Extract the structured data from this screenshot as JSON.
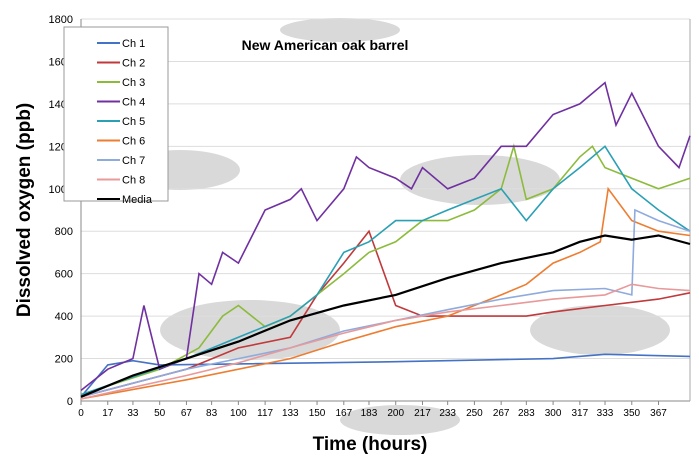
{
  "chart_data": {
    "type": "line",
    "title": "New American oak barrel",
    "xlabel": "Time (hours)",
    "ylabel": "Dissolved oxygen (ppb)",
    "xlim": [
      0,
      387
    ],
    "ylim": [
      0,
      1800
    ],
    "xticks": [
      0,
      17,
      33,
      50,
      67,
      83,
      100,
      117,
      133,
      150,
      167,
      183,
      200,
      217,
      233,
      250,
      267,
      283,
      300,
      317,
      333,
      350,
      367
    ],
    "yticks": [
      0,
      200,
      400,
      600,
      800,
      1000,
      1200,
      1400,
      1600,
      1800
    ],
    "grid": true,
    "legend": "top-left",
    "series": [
      {
        "name": "Ch 1",
        "color": "#4472c4",
        "points": [
          [
            0,
            20
          ],
          [
            17,
            170
          ],
          [
            33,
            190
          ],
          [
            50,
            170
          ],
          [
            100,
            175
          ],
          [
            200,
            185
          ],
          [
            300,
            200
          ],
          [
            333,
            220
          ],
          [
            387,
            210
          ]
        ]
      },
      {
        "name": "Ch 2",
        "color": "#c0393b",
        "points": [
          [
            0,
            20
          ],
          [
            67,
            150
          ],
          [
            100,
            250
          ],
          [
            133,
            300
          ],
          [
            150,
            500
          ],
          [
            167,
            650
          ],
          [
            183,
            800
          ],
          [
            200,
            450
          ],
          [
            217,
            400
          ],
          [
            250,
            400
          ],
          [
            283,
            400
          ],
          [
            300,
            420
          ],
          [
            333,
            450
          ],
          [
            367,
            480
          ],
          [
            387,
            510
          ]
        ]
      },
      {
        "name": "Ch 3",
        "color": "#8cbb3c",
        "points": [
          [
            0,
            30
          ],
          [
            50,
            150
          ],
          [
            75,
            250
          ],
          [
            90,
            400
          ],
          [
            100,
            450
          ],
          [
            117,
            350
          ],
          [
            133,
            400
          ],
          [
            150,
            500
          ],
          [
            167,
            600
          ],
          [
            183,
            700
          ],
          [
            200,
            750
          ],
          [
            217,
            850
          ],
          [
            233,
            850
          ],
          [
            250,
            900
          ],
          [
            267,
            1000
          ],
          [
            275,
            1200
          ],
          [
            283,
            950
          ],
          [
            300,
            1000
          ],
          [
            317,
            1150
          ],
          [
            325,
            1200
          ],
          [
            333,
            1100
          ],
          [
            350,
            1050
          ],
          [
            367,
            1000
          ],
          [
            387,
            1050
          ]
        ]
      },
      {
        "name": "Ch 4",
        "color": "#7030a0",
        "points": [
          [
            0,
            50
          ],
          [
            17,
            150
          ],
          [
            33,
            200
          ],
          [
            40,
            450
          ],
          [
            50,
            150
          ],
          [
            67,
            200
          ],
          [
            75,
            600
          ],
          [
            83,
            550
          ],
          [
            90,
            700
          ],
          [
            100,
            650
          ],
          [
            117,
            900
          ],
          [
            133,
            950
          ],
          [
            140,
            1000
          ],
          [
            150,
            850
          ],
          [
            167,
            1000
          ],
          [
            175,
            1150
          ],
          [
            183,
            1100
          ],
          [
            200,
            1050
          ],
          [
            210,
            1000
          ],
          [
            217,
            1100
          ],
          [
            233,
            1000
          ],
          [
            250,
            1050
          ],
          [
            267,
            1200
          ],
          [
            283,
            1200
          ],
          [
            300,
            1350
          ],
          [
            317,
            1400
          ],
          [
            333,
            1500
          ],
          [
            340,
            1300
          ],
          [
            350,
            1450
          ],
          [
            367,
            1200
          ],
          [
            380,
            1100
          ],
          [
            387,
            1250
          ]
        ]
      },
      {
        "name": "Ch 5",
        "color": "#2aa0b4",
        "points": [
          [
            0,
            30
          ],
          [
            67,
            200
          ],
          [
            100,
            300
          ],
          [
            133,
            400
          ],
          [
            150,
            500
          ],
          [
            167,
            700
          ],
          [
            183,
            750
          ],
          [
            200,
            850
          ],
          [
            217,
            850
          ],
          [
            233,
            900
          ],
          [
            250,
            950
          ],
          [
            267,
            1000
          ],
          [
            283,
            850
          ],
          [
            300,
            1000
          ],
          [
            317,
            1100
          ],
          [
            333,
            1200
          ],
          [
            350,
            1000
          ],
          [
            367,
            900
          ],
          [
            387,
            800
          ]
        ]
      },
      {
        "name": "Ch 6",
        "color": "#ed7d31",
        "points": [
          [
            0,
            10
          ],
          [
            67,
            100
          ],
          [
            133,
            200
          ],
          [
            167,
            280
          ],
          [
            200,
            350
          ],
          [
            233,
            400
          ],
          [
            250,
            450
          ],
          [
            267,
            500
          ],
          [
            283,
            550
          ],
          [
            300,
            650
          ],
          [
            317,
            700
          ],
          [
            330,
            750
          ],
          [
            335,
            1000
          ],
          [
            350,
            850
          ],
          [
            367,
            800
          ],
          [
            387,
            780
          ]
        ]
      },
      {
        "name": "Ch 7",
        "color": "#8faadc",
        "points": [
          [
            0,
            20
          ],
          [
            67,
            150
          ],
          [
            100,
            200
          ],
          [
            133,
            250
          ],
          [
            167,
            330
          ],
          [
            200,
            380
          ],
          [
            233,
            430
          ],
          [
            267,
            480
          ],
          [
            300,
            520
          ],
          [
            333,
            530
          ],
          [
            350,
            500
          ],
          [
            352,
            900
          ],
          [
            367,
            850
          ],
          [
            387,
            800
          ]
        ]
      },
      {
        "name": "Ch 8",
        "color": "#e8999a",
        "points": [
          [
            0,
            10
          ],
          [
            67,
            120
          ],
          [
            100,
            180
          ],
          [
            133,
            250
          ],
          [
            167,
            320
          ],
          [
            200,
            380
          ],
          [
            233,
            420
          ],
          [
            267,
            450
          ],
          [
            300,
            480
          ],
          [
            333,
            500
          ],
          [
            350,
            550
          ],
          [
            367,
            530
          ],
          [
            387,
            520
          ]
        ]
      },
      {
        "name": "Media",
        "color": "#000000",
        "points": [
          [
            0,
            20
          ],
          [
            33,
            120
          ],
          [
            67,
            200
          ],
          [
            100,
            280
          ],
          [
            133,
            380
          ],
          [
            167,
            450
          ],
          [
            200,
            500
          ],
          [
            233,
            580
          ],
          [
            267,
            650
          ],
          [
            300,
            700
          ],
          [
            317,
            750
          ],
          [
            333,
            780
          ],
          [
            350,
            760
          ],
          [
            367,
            780
          ],
          [
            387,
            740
          ]
        ]
      }
    ]
  }
}
